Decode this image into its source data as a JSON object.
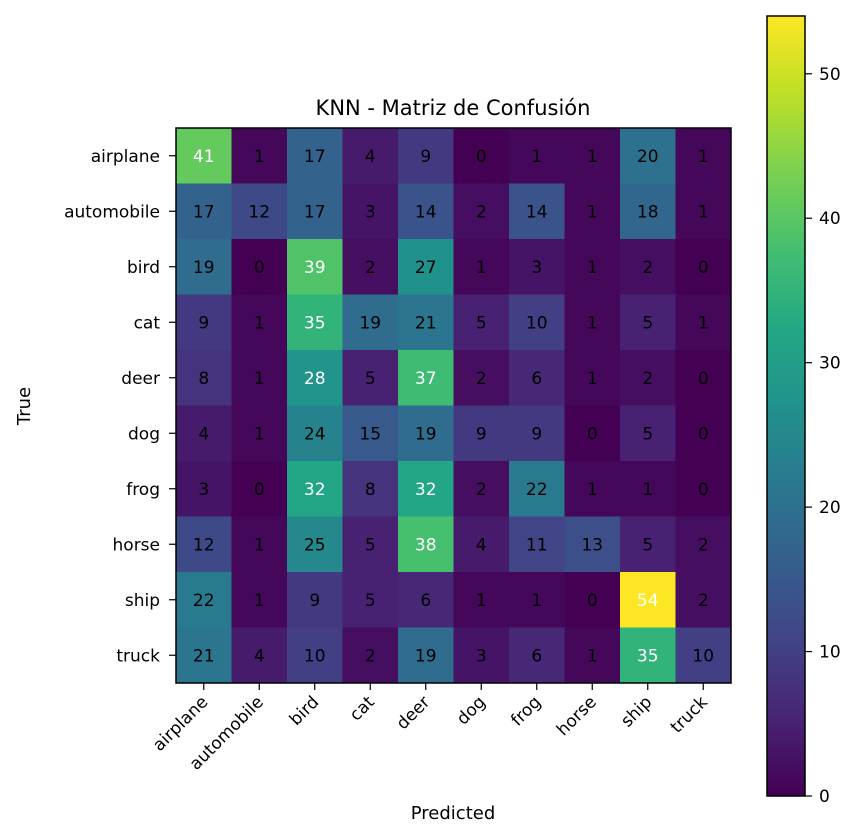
{
  "chart_data": {
    "type": "heatmap",
    "title": "KNN - Matriz de Confusión",
    "xlabel": "Predicted",
    "ylabel": "True",
    "x_categories": [
      "airplane",
      "automobile",
      "bird",
      "cat",
      "deer",
      "dog",
      "frog",
      "horse",
      "ship",
      "truck"
    ],
    "y_categories": [
      "airplane",
      "automobile",
      "bird",
      "cat",
      "deer",
      "dog",
      "frog",
      "horse",
      "ship",
      "truck"
    ],
    "values": [
      [
        41,
        1,
        17,
        4,
        9,
        0,
        1,
        1,
        20,
        1
      ],
      [
        17,
        12,
        17,
        3,
        14,
        2,
        14,
        1,
        18,
        1
      ],
      [
        19,
        0,
        39,
        2,
        27,
        1,
        3,
        1,
        2,
        0
      ],
      [
        9,
        1,
        35,
        19,
        21,
        5,
        10,
        1,
        5,
        1
      ],
      [
        8,
        1,
        28,
        5,
        37,
        2,
        6,
        1,
        2,
        0
      ],
      [
        4,
        1,
        24,
        15,
        19,
        9,
        9,
        0,
        5,
        0
      ],
      [
        3,
        0,
        32,
        8,
        32,
        2,
        22,
        1,
        1,
        0
      ],
      [
        12,
        1,
        25,
        5,
        38,
        4,
        11,
        13,
        5,
        2
      ],
      [
        22,
        1,
        9,
        5,
        6,
        1,
        1,
        0,
        54,
        2
      ],
      [
        21,
        4,
        10,
        2,
        19,
        3,
        6,
        1,
        35,
        10
      ]
    ],
    "colormap": "viridis",
    "vmin": 0,
    "vmax": 54,
    "colorbar_ticks": [
      0,
      10,
      20,
      30,
      40,
      50
    ]
  }
}
